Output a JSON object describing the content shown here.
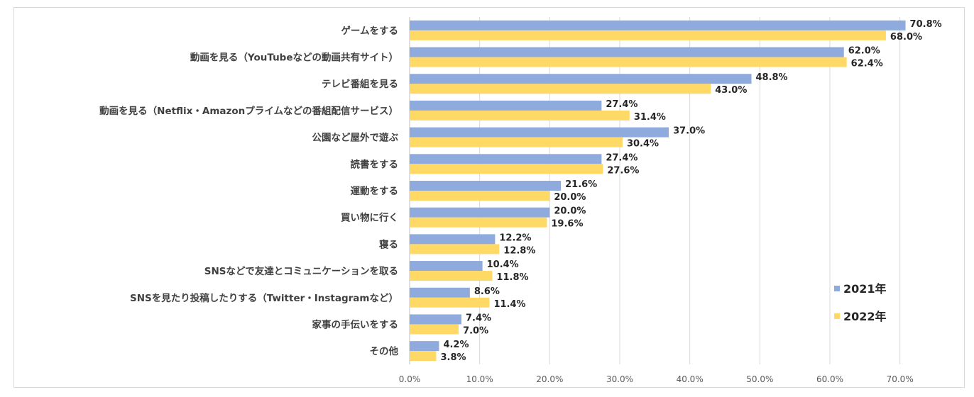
{
  "chart_data": {
    "type": "bar",
    "orientation": "horizontal",
    "title": "",
    "xlabel": "",
    "ylabel": "",
    "xlim": [
      0,
      0.75
    ],
    "xticks": [
      "0.0%",
      "10.0%",
      "20.0%",
      "30.0%",
      "40.0%",
      "50.0%",
      "60.0%",
      "70.0%"
    ],
    "grid": true,
    "legend_position": "right",
    "categories": [
      "ゲームをする",
      "動画を見る（YouTubeなどの動画共有サイト）",
      "テレビ番組を見る",
      "動画を見る（Netflix・Amazonプライムなどの番組配信サービス）",
      "公園など屋外で遊ぶ",
      "読書をする",
      "運動をする",
      "買い物に行く",
      "寝る",
      "SNSなどで友達とコミュニケーションを取る",
      "SNSを見たり投稿したりする（Twitter・Instagramなど）",
      "家事の手伝いをする",
      "その他"
    ],
    "series": [
      {
        "name": "2021年",
        "color": "#8faadc",
        "values": [
          0.708,
          0.62,
          0.488,
          0.274,
          0.37,
          0.274,
          0.216,
          0.2,
          0.122,
          0.104,
          0.086,
          0.074,
          0.042
        ],
        "labels": [
          "70.8%",
          "62.0%",
          "48.8%",
          "27.4%",
          "37.0%",
          "27.4%",
          "21.6%",
          "20.0%",
          "12.2%",
          "10.4%",
          "8.6%",
          "7.4%",
          "4.2%"
        ]
      },
      {
        "name": "2022年",
        "color": "#ffd966",
        "values": [
          0.68,
          0.624,
          0.43,
          0.314,
          0.304,
          0.276,
          0.2,
          0.196,
          0.128,
          0.118,
          0.114,
          0.07,
          0.038
        ],
        "labels": [
          "68.0%",
          "62.4%",
          "43.0%",
          "31.4%",
          "30.4%",
          "27.6%",
          "20.0%",
          "19.6%",
          "12.8%",
          "11.8%",
          "11.4%",
          "7.0%",
          "3.8%"
        ]
      }
    ]
  }
}
